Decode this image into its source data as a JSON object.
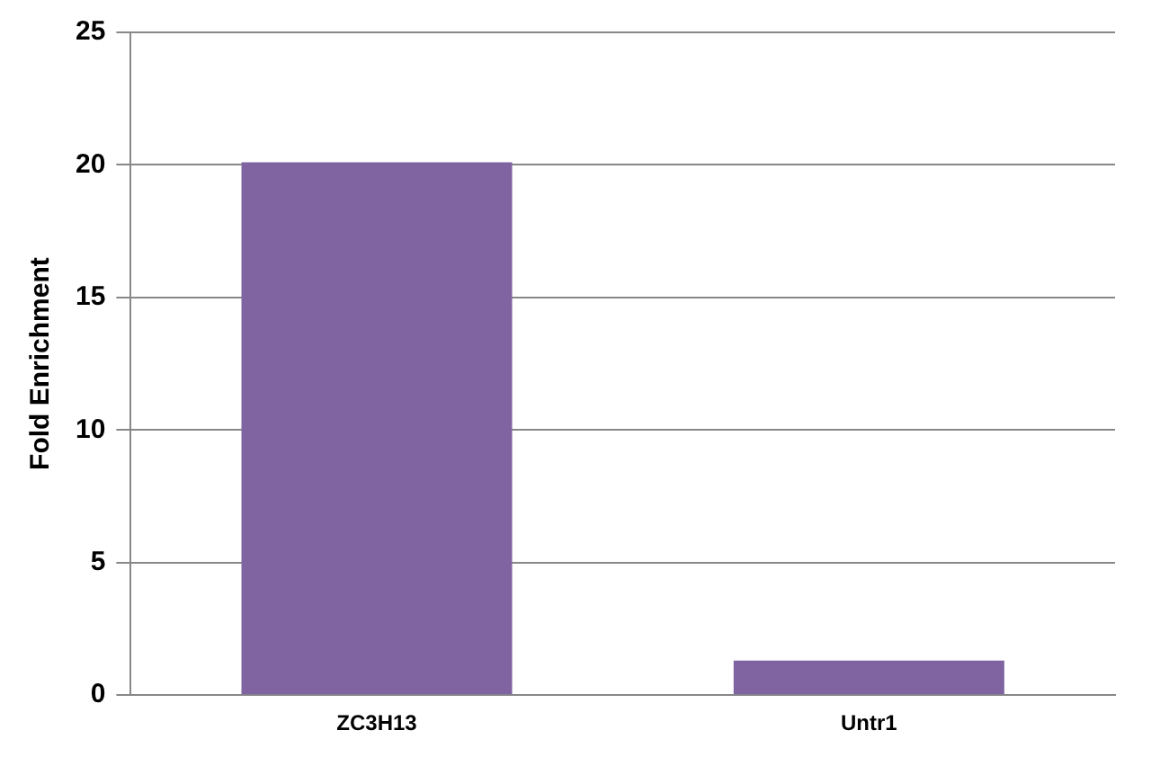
{
  "chart_data": {
    "type": "bar",
    "ylabel": "Fold Enrichment",
    "categories": [
      "ZC3H13",
      "Untr1"
    ],
    "values": [
      20.1,
      1.3
    ],
    "color": "#8064a2",
    "ylim": [
      0,
      25
    ],
    "yticks": [
      0,
      5,
      10,
      15,
      20,
      25
    ],
    "grid": "y"
  }
}
